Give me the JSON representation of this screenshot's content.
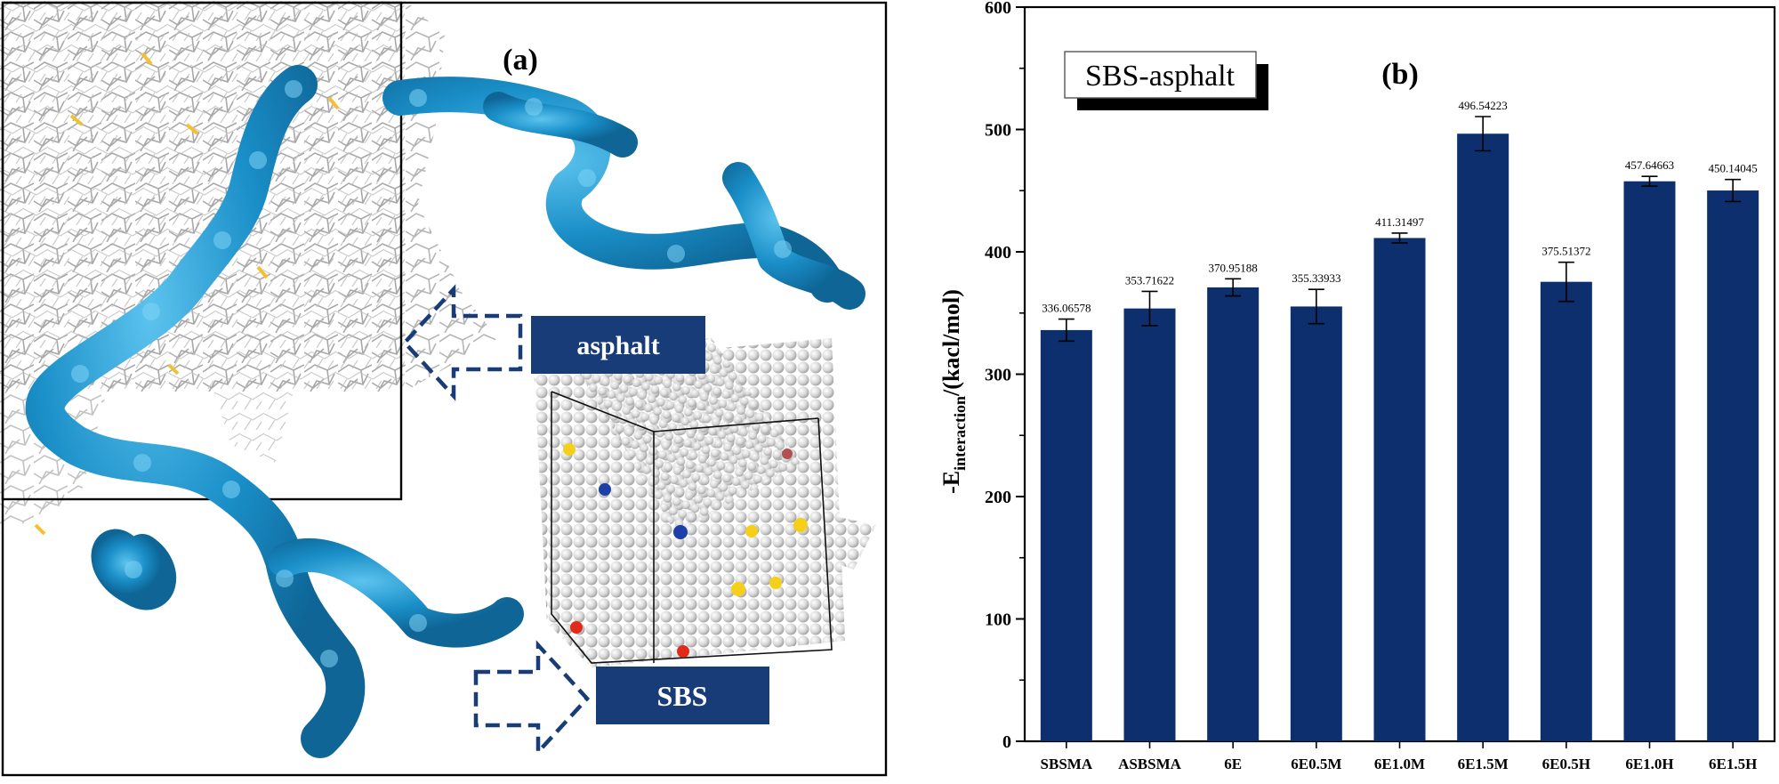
{
  "panel_a": {
    "label": "(a)",
    "asphalt_label": "asphalt",
    "sbs_label": "SBS",
    "colors": {
      "sbs_chain": "#1a8fc8",
      "label_box": "#173c78",
      "asphalt_lines": "#9a9a9a"
    }
  },
  "chart_data": {
    "type": "bar",
    "panel_label": "(b)",
    "title": "SBS-asphalt",
    "ylabel_main": "-E",
    "ylabel_sub": "interaction",
    "ylabel_rest": "/(kacl/mol)",
    "xlabel": "",
    "ylim": [
      0,
      600
    ],
    "yticks": [
      0,
      100,
      200,
      300,
      400,
      500,
      600
    ],
    "categories": [
      "SBSMA",
      "ASBSMA",
      "6E",
      "6E0.5M",
      "6E1.0M",
      "6E1.5M",
      "6E0.5H",
      "6E1.0H",
      "6E1.5H"
    ],
    "values": [
      336.06578,
      353.71622,
      370.95188,
      355.33933,
      411.31497,
      496.54223,
      375.51372,
      457.64663,
      450.14045
    ],
    "value_labels": [
      "336.06578",
      "353.71622",
      "370.95188",
      "355.33933",
      "411.31497",
      "496.54223",
      "375.51372",
      "457.64663",
      "450.14045"
    ],
    "errors": [
      9,
      14,
      7,
      14,
      4,
      14,
      16,
      4,
      9
    ],
    "bar_color": "#0d2f6e",
    "grid": false
  }
}
